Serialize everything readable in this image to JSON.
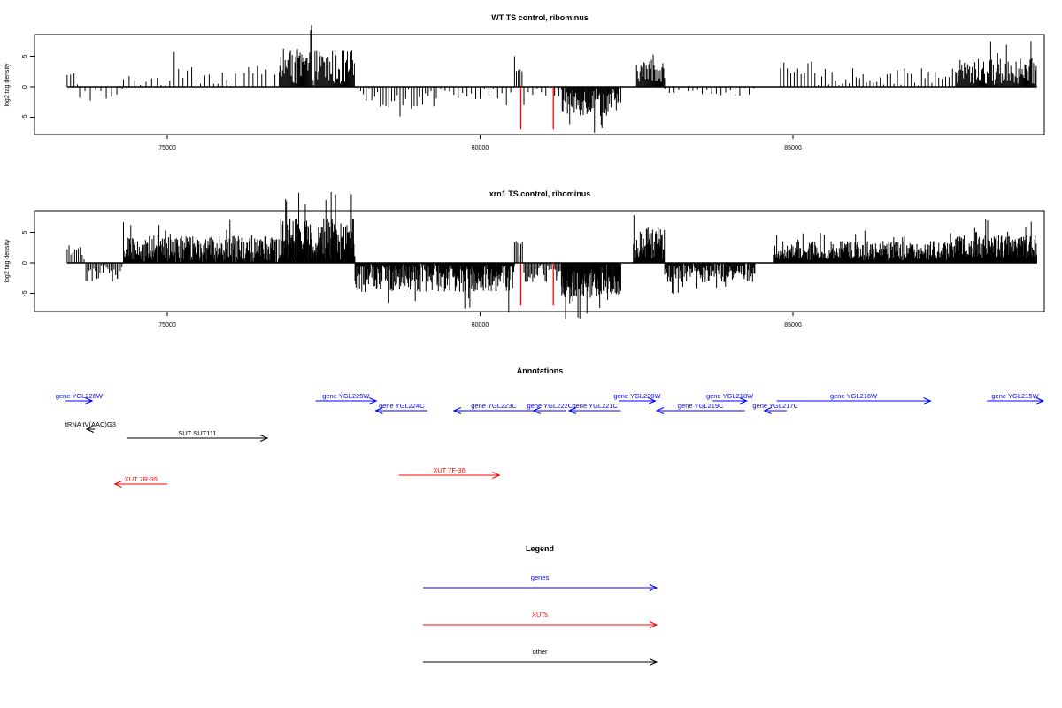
{
  "colors": {
    "genes": "#0000ff",
    "xuts": "#ff0000",
    "other": "#000000"
  },
  "chart_data": [
    {
      "type": "bar",
      "title": "WT TS control, ribominus",
      "xlabel": "",
      "ylabel": "log2 tag density",
      "xlim": [
        73300,
        89000
      ],
      "ylim": [
        -7.5,
        8.5
      ],
      "xticks": [
        "75000",
        "80000",
        "85000"
      ],
      "xtick_values": [
        75000,
        80000,
        85000
      ],
      "yticks": [
        "-5",
        "0",
        "5"
      ],
      "ytick_values": [
        -5,
        0,
        5
      ],
      "red_lines": [
        {
          "x": 80650,
          "y": -7.0
        },
        {
          "x": 81170,
          "y": -7.0
        }
      ],
      "regions": [
        {
          "start": 73400,
          "end": 73600,
          "mean": 1.2,
          "amp": 1.6,
          "step": 55
        },
        {
          "start": 73600,
          "end": 74300,
          "mean": -1.2,
          "amp": 1.2,
          "step": 85
        },
        {
          "start": 74300,
          "end": 74900,
          "mean": 1.1,
          "amp": 1.0,
          "step": 90
        },
        {
          "start": 74900,
          "end": 76800,
          "mean": 1.6,
          "amp": 1.8,
          "step": 70
        },
        {
          "start": 76800,
          "end": 78000,
          "mean": 3.2,
          "amp": 3.0,
          "step": 14
        },
        {
          "start": 78000,
          "end": 79300,
          "mean": -1.6,
          "amp": 1.8,
          "step": 45
        },
        {
          "start": 79300,
          "end": 80550,
          "mean": -0.9,
          "amp": 1.2,
          "step": 70
        },
        {
          "start": 80550,
          "end": 80700,
          "mean": 3.0,
          "amp": 2.6,
          "step": 30
        },
        {
          "start": 80700,
          "end": 81300,
          "mean": -0.9,
          "amp": 1.0,
          "step": 70
        },
        {
          "start": 81300,
          "end": 82250,
          "mean": -2.4,
          "amp": 2.4,
          "step": 12
        },
        {
          "start": 82500,
          "end": 82950,
          "mean": 2.6,
          "amp": 1.8,
          "step": 14
        },
        {
          "start": 82950,
          "end": 84400,
          "mean": -0.8,
          "amp": 0.8,
          "step": 75
        },
        {
          "start": 84800,
          "end": 87600,
          "mean": 1.6,
          "amp": 1.4,
          "step": 55
        },
        {
          "start": 87600,
          "end": 88900,
          "mean": 2.5,
          "amp": 2.2,
          "step": 14
        }
      ]
    },
    {
      "type": "bar",
      "title": "xrn1 TS control, ribominus",
      "xlabel": "",
      "ylabel": "log2 tag density",
      "xlim": [
        73300,
        89000
      ],
      "ylim": [
        -7.5,
        8.5
      ],
      "xticks": [
        "75000",
        "80000",
        "85000"
      ],
      "xtick_values": [
        75000,
        80000,
        85000
      ],
      "yticks": [
        "-5",
        "0",
        "5"
      ],
      "ytick_values": [
        -5,
        0,
        5
      ],
      "red_lines": [
        {
          "x": 80650,
          "y": -7.0
        },
        {
          "x": 81170,
          "y": -7.0
        }
      ],
      "regions": [
        {
          "start": 73400,
          "end": 73700,
          "mean": 1.2,
          "amp": 1.8,
          "step": 30
        },
        {
          "start": 73700,
          "end": 74300,
          "mean": -1.5,
          "amp": 1.6,
          "step": 25
        },
        {
          "start": 74300,
          "end": 76800,
          "mean": 2.2,
          "amp": 2.2,
          "step": 9
        },
        {
          "start": 76800,
          "end": 78000,
          "mean": 3.8,
          "amp": 3.5,
          "step": 7
        },
        {
          "start": 78000,
          "end": 80550,
          "mean": -2.2,
          "amp": 2.6,
          "step": 9
        },
        {
          "start": 80550,
          "end": 80700,
          "mean": 2.6,
          "amp": 2.0,
          "step": 25
        },
        {
          "start": 80700,
          "end": 81300,
          "mean": -1.6,
          "amp": 1.6,
          "step": 20
        },
        {
          "start": 81300,
          "end": 82250,
          "mean": -3.0,
          "amp": 2.8,
          "step": 6
        },
        {
          "start": 82450,
          "end": 82950,
          "mean": 3.2,
          "amp": 2.6,
          "step": 9
        },
        {
          "start": 82950,
          "end": 84400,
          "mean": -1.6,
          "amp": 1.6,
          "step": 12
        },
        {
          "start": 84700,
          "end": 87600,
          "mean": 2.0,
          "amp": 1.6,
          "step": 10
        },
        {
          "start": 87600,
          "end": 88900,
          "mean": 2.6,
          "amp": 2.0,
          "step": 8
        }
      ]
    }
  ],
  "annotations": {
    "title": "Annotations",
    "items": [
      {
        "label": "gene YGL226W",
        "type": "genes",
        "start": 73380,
        "end": 73800,
        "row": 0
      },
      {
        "label": "gene YGL225W",
        "type": "genes",
        "start": 77370,
        "end": 78340,
        "row": 0
      },
      {
        "label": "gene YGL224C",
        "type": "genes",
        "start": 79160,
        "end": 78330,
        "row": 1
      },
      {
        "label": "gene YGL223C",
        "type": "genes",
        "start": 80860,
        "end": 79580,
        "row": 1
      },
      {
        "label": "gene YGL222C",
        "type": "genes",
        "start": 81380,
        "end": 80850,
        "row": 1
      },
      {
        "label": "gene YGL221C",
        "type": "genes",
        "start": 82250,
        "end": 81420,
        "row": 1
      },
      {
        "label": "gene YGL220W",
        "type": "genes",
        "start": 82220,
        "end": 82800,
        "row": 0
      },
      {
        "label": "gene YGL219C",
        "type": "genes",
        "start": 84230,
        "end": 82820,
        "row": 1
      },
      {
        "label": "gene YGL218W",
        "type": "genes",
        "start": 83720,
        "end": 84260,
        "row": 0
      },
      {
        "label": "gene YGL217C",
        "type": "genes",
        "start": 84900,
        "end": 84540,
        "row": 1
      },
      {
        "label": "gene YGL216W",
        "type": "genes",
        "start": 84740,
        "end": 87200,
        "row": 0
      },
      {
        "label": "gene YGL215W",
        "type": "genes",
        "start": 88100,
        "end": 89000,
        "row": 0
      },
      {
        "label": "tRNA tV(AAC)G3",
        "type": "other",
        "start": 73840,
        "end": 73710,
        "row": 2
      },
      {
        "label": "SUT SUT111",
        "type": "other",
        "start": 74360,
        "end": 76600,
        "row": 3
      },
      {
        "label": "XUT 7R-35",
        "type": "xuts",
        "start": 75000,
        "end": 74160,
        "row": 4
      },
      {
        "label": "XUT 7F-36",
        "type": "xuts",
        "start": 78700,
        "end": 80310,
        "row": 5
      }
    ]
  },
  "legend": {
    "title": "Legend",
    "items": [
      {
        "label": "genes",
        "type": "genes"
      },
      {
        "label": "XUTs",
        "type": "xuts"
      },
      {
        "label": "other",
        "type": "other"
      }
    ]
  }
}
